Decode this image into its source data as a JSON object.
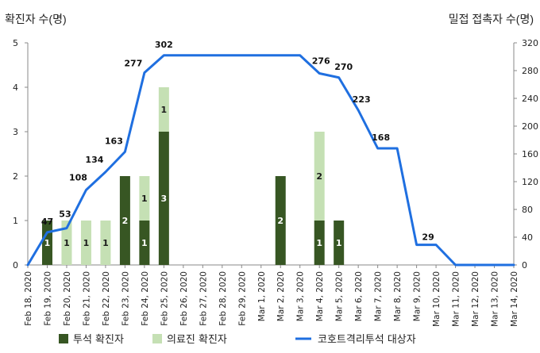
{
  "chart_data": {
    "type": "bar",
    "ylabel_left": "확진자 수(명)",
    "ylabel_right": "밀접 접촉자 수(명)",
    "left_ylim": [
      0,
      5
    ],
    "left_ticks": [
      0,
      1,
      2,
      3,
      4,
      5
    ],
    "right_ylim": [
      0,
      320
    ],
    "right_ticks": [
      0,
      40,
      80,
      120,
      160,
      200,
      240,
      280,
      320
    ],
    "legend_position": "bottom",
    "categories": [
      "Feb 18, 2020",
      "Feb 19, 2020",
      "Feb 20, 2020",
      "Feb 21, 2020",
      "Feb 22, 2020",
      "Feb 23, 2020",
      "Feb 24, 2020",
      "Feb 25, 2020",
      "Feb 26, 2020",
      "Feb 27, 2020",
      "Feb 28, 2020",
      "Feb 29, 2020",
      "Mar 1, 2020",
      "Mar 2, 2020",
      "Mar 3, 2020",
      "Mar 4, 2020",
      "Mar 5, 2020",
      "Mar 6, 2020",
      "Mar 7, 2020",
      "Mar 8, 2020",
      "Mar 9, 2020",
      "Mar 10, 2020",
      "Mar 11, 2020",
      "Mar 12, 2020",
      "Mar 13, 2020",
      "Mar 14, 2020"
    ],
    "series": [
      {
        "name": "투석 확진자",
        "kind": "bar",
        "axis": "left",
        "color": "#375623",
        "values": [
          0,
          1,
          0,
          0,
          0,
          2,
          1,
          3,
          0,
          0,
          0,
          0,
          0,
          2,
          0,
          1,
          1,
          0,
          0,
          0,
          0,
          0,
          0,
          0,
          0,
          0
        ]
      },
      {
        "name": "의료진 확진자",
        "kind": "bar",
        "axis": "left",
        "color": "#c5e0b4",
        "values": [
          0,
          0,
          1,
          1,
          1,
          0,
          1,
          1,
          0,
          0,
          0,
          0,
          0,
          0,
          0,
          2,
          0,
          0,
          0,
          0,
          0,
          0,
          0,
          0,
          0,
          0
        ]
      },
      {
        "name": "코호트격리투석 대상자",
        "kind": "line",
        "axis": "right",
        "color": "#1f6fe0",
        "values": [
          0,
          47,
          53,
          108,
          134,
          163,
          277,
          302,
          302,
          302,
          302,
          302,
          302,
          302,
          302,
          276,
          270,
          223,
          168,
          168,
          29,
          29,
          0,
          0,
          0,
          0
        ]
      }
    ],
    "line_value_labels": [
      {
        "index": 1,
        "text": "47"
      },
      {
        "index": 2,
        "text": "53"
      },
      {
        "index": 3,
        "text": "108"
      },
      {
        "index": 4,
        "text": "134"
      },
      {
        "index": 5,
        "text": "163"
      },
      {
        "index": 6,
        "text": "277"
      },
      {
        "index": 7,
        "text": "302"
      },
      {
        "index": 15,
        "text": "276"
      },
      {
        "index": 16,
        "text": "270"
      },
      {
        "index": 17,
        "text": "223"
      },
      {
        "index": 18,
        "text": "168"
      },
      {
        "index": 21,
        "text": "29"
      }
    ]
  }
}
